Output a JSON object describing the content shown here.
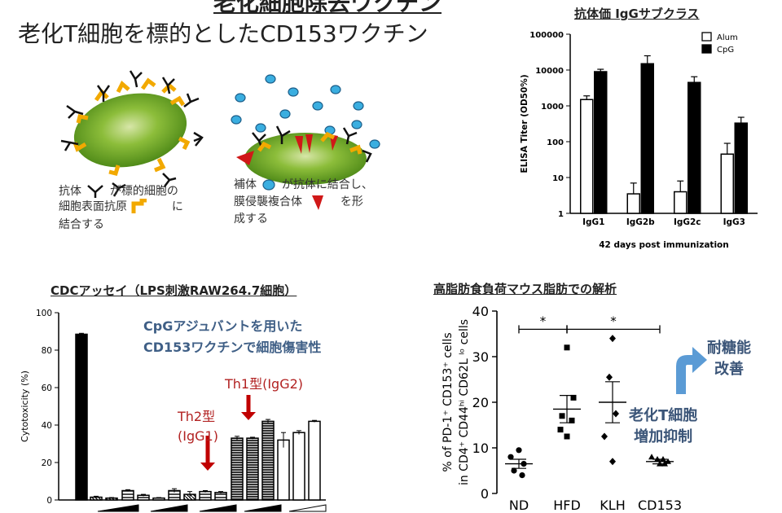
{
  "header": {
    "title": "老化細胞除去ワクチン",
    "subtitle": "老化T細胞を標的としたCD153ワクチン"
  },
  "illustration": {
    "left_caption": [
      "抗体",
      "が標的細胞の",
      "細胞表面抗原",
      "に",
      "結合する"
    ],
    "right_caption": [
      "補体",
      "が抗体に結合し、",
      "膜侵襲複合体",
      "を形",
      "成する"
    ]
  },
  "panel_igg": {
    "title": "抗体価 IgGサブクラス",
    "chart_data": {
      "type": "bar",
      "categories": [
        "IgG1",
        "IgG2b",
        "IgG2c",
        "IgG3"
      ],
      "series": [
        {
          "name": "Alum",
          "values": [
            1500,
            3.5,
            4,
            45
          ],
          "errors": [
            400,
            3.5,
            4,
            45
          ],
          "color": "#ffffff"
        },
        {
          "name": "CpG",
          "values": [
            9000,
            15000,
            4500,
            330
          ],
          "errors": [
            1500,
            10000,
            2000,
            150
          ],
          "color": "#000000"
        }
      ],
      "ylabel": "ELISA Titer (OD50%)",
      "xlabel": "42 days post immunization",
      "yscale": "log",
      "ylim": [
        1,
        100000
      ],
      "yticks": [
        "1",
        "10",
        "100",
        "1000",
        "10000",
        "100000"
      ],
      "legend": "top-right"
    }
  },
  "panel_cdc": {
    "title": "CDCアッセイ（LPS刺激RAW264.7細胞）",
    "callout": [
      "CpGアジュバントを用いた",
      "CD153ワクチンで細胞傷害性"
    ],
    "th2_label": [
      "Th2型",
      "(IgG1)"
    ],
    "th1_label": "Th1型(IgG2)",
    "chart_data": {
      "type": "bar",
      "values": [
        88.5,
        1.5,
        1,
        5,
        2.5,
        1,
        5,
        3,
        4.5,
        4,
        33,
        33,
        42,
        32,
        36,
        42
      ],
      "errors": [
        0.5,
        0.5,
        0.3,
        0.5,
        0.5,
        0.3,
        1,
        1.5,
        0.5,
        0.5,
        1,
        0.5,
        1,
        4,
        1,
        0.5
      ],
      "ylabel": "Cytotoxicity (%)",
      "ylim": [
        0,
        100
      ],
      "yticks": [
        "0",
        "20",
        "40",
        "60",
        "80",
        "100"
      ]
    }
  },
  "panel_fat": {
    "title": "高脂肪食負荷マウス脂肪での解析",
    "chart_data": {
      "type": "scatter",
      "categories": [
        "ND",
        "HFD",
        "KLH",
        "CD153"
      ],
      "series": [
        {
          "name": "ND",
          "points": [
            9.5,
            8,
            6.5,
            5,
            4
          ],
          "mean": 6.5,
          "sem": 1
        },
        {
          "name": "HFD",
          "points": [
            32,
            21,
            17,
            16,
            14,
            12.5
          ],
          "mean": 18.5,
          "sem": 3
        },
        {
          "name": "KLH",
          "points": [
            34,
            25.5,
            17.5,
            12.5,
            7
          ],
          "mean": 20,
          "sem": 4.5
        },
        {
          "name": "CD153",
          "points": [
            8,
            7.5,
            7.5,
            7,
            6.5,
            6.5
          ],
          "mean": 7,
          "sem": 0.5
        }
      ],
      "ylim": [
        0,
        40
      ],
      "yticks": [
        "0",
        "10",
        "20",
        "30",
        "40"
      ],
      "ylabel_line1": "% of PD-1⁺ CD153⁺ cells",
      "ylabel_line2": "in CD4⁺ CD44ʰⁱ CD62L ˡᵒ cells",
      "significance": [
        "*",
        "*"
      ]
    },
    "arrow_label": [
      "耐糖能",
      "改善"
    ],
    "suppress_label": [
      "老化T細胞",
      "増加抑制"
    ]
  }
}
